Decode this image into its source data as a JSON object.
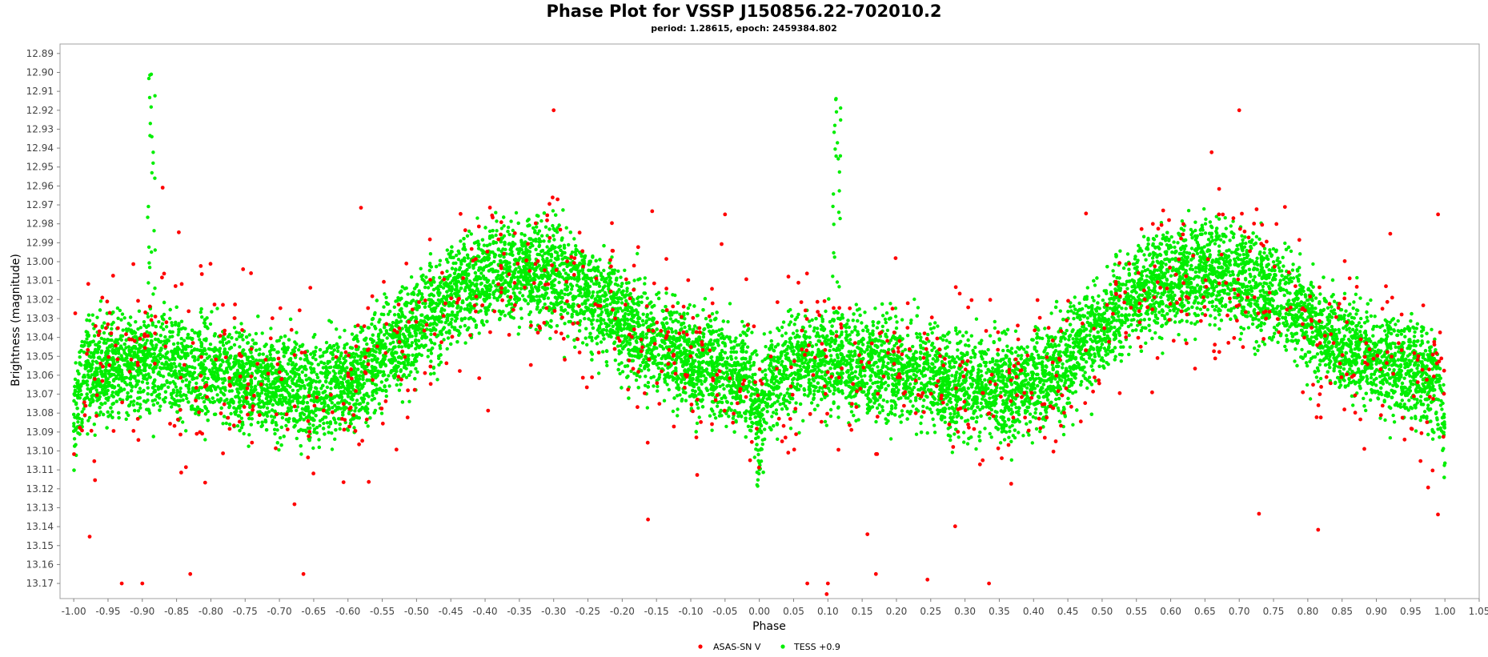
{
  "chart_data": {
    "type": "scatter",
    "title": "Phase Plot for VSSP J150856.22-702010.2",
    "subtitle": "period: 1.28615, epoch: 2459384.802",
    "xlabel": "Phase",
    "ylabel": "Brightness (magnitude)",
    "xlim": [
      -1.02,
      1.05
    ],
    "ylim": [
      12.885,
      13.178
    ],
    "y_inverted": true,
    "grid": false,
    "legend_position": "bottom-center",
    "x_ticks": [
      "-1.00",
      "-0.95",
      "-0.90",
      "-0.85",
      "-0.80",
      "-0.75",
      "-0.70",
      "-0.65",
      "-0.60",
      "-0.55",
      "-0.50",
      "-0.45",
      "-0.40",
      "-0.35",
      "-0.30",
      "-0.25",
      "-0.20",
      "-0.15",
      "-0.10",
      "-0.05",
      "0.00",
      "0.05",
      "0.10",
      "0.15",
      "0.20",
      "0.25",
      "0.30",
      "0.35",
      "0.40",
      "0.45",
      "0.50",
      "0.55",
      "0.60",
      "0.65",
      "0.70",
      "0.75",
      "0.80",
      "0.85",
      "0.90",
      "0.95",
      "1.00",
      "1.05"
    ],
    "y_ticks": [
      "12.89",
      "12.90",
      "12.91",
      "12.92",
      "12.93",
      "12.94",
      "12.95",
      "12.96",
      "12.97",
      "12.98",
      "12.99",
      "13.00",
      "13.01",
      "13.02",
      "13.03",
      "13.04",
      "13.05",
      "13.06",
      "13.07",
      "13.08",
      "13.09",
      "13.10",
      "13.11",
      "13.12",
      "13.13",
      "13.14",
      "13.15",
      "13.16",
      "13.17"
    ],
    "series": [
      {
        "name": "ASAS-SN V",
        "color": "#ff0000",
        "profile": {
          "x": [
            -1.0,
            -0.95,
            -0.9,
            -0.85,
            -0.8,
            -0.75,
            -0.7,
            -0.65,
            -0.6,
            -0.55,
            -0.5,
            -0.45,
            -0.4,
            -0.35,
            -0.3,
            -0.25,
            -0.2,
            -0.15,
            -0.1,
            -0.05,
            0.0,
            0.05,
            0.1,
            0.15,
            0.2,
            0.25,
            0.3,
            0.35,
            0.4,
            0.45,
            0.5,
            0.55,
            0.6,
            0.65,
            0.7,
            0.75,
            0.8,
            0.85,
            0.9,
            0.95,
            1.0
          ],
          "y": [
            13.062,
            13.056,
            13.05,
            13.052,
            13.055,
            13.06,
            13.066,
            13.071,
            13.068,
            13.058,
            13.04,
            13.022,
            13.012,
            13.008,
            13.012,
            13.022,
            13.035,
            13.048,
            13.058,
            13.064,
            13.066,
            13.058,
            13.05,
            13.052,
            13.055,
            13.06,
            13.066,
            13.071,
            13.068,
            13.058,
            13.04,
            13.022,
            13.012,
            13.008,
            13.012,
            13.022,
            13.035,
            13.048,
            13.058,
            13.064,
            13.066
          ]
        },
        "scatter_mag": 0.05,
        "n_points": 900,
        "outliers": [
          {
            "x": -0.3,
            "y": 12.92
          },
          {
            "x": 0.7,
            "y": 12.92
          },
          {
            "x": -0.93,
            "y": 13.17
          },
          {
            "x": -0.9,
            "y": 13.17
          },
          {
            "x": -0.83,
            "y": 13.165
          },
          {
            "x": -0.665,
            "y": 13.165
          },
          {
            "x": 0.07,
            "y": 13.17
          },
          {
            "x": 0.1,
            "y": 13.17
          },
          {
            "x": 0.335,
            "y": 13.17
          },
          {
            "x": 0.17,
            "y": 13.165
          },
          {
            "x": -0.05,
            "y": 12.975
          },
          {
            "x": 0.99,
            "y": 12.975
          }
        ]
      },
      {
        "name": "TESS +0.9",
        "color": "#00ee00",
        "profile": {
          "x": [
            -1.0,
            -0.995,
            -0.98,
            -0.95,
            -0.9,
            -0.85,
            -0.8,
            -0.75,
            -0.7,
            -0.65,
            -0.6,
            -0.55,
            -0.5,
            -0.45,
            -0.4,
            -0.35,
            -0.3,
            -0.25,
            -0.2,
            -0.15,
            -0.1,
            -0.05,
            -0.02,
            -0.01,
            -0.005,
            0.0,
            0.005,
            0.01,
            0.02,
            0.05,
            0.1,
            0.15,
            0.2,
            0.25,
            0.3,
            0.35,
            0.4,
            0.45,
            0.5,
            0.55,
            0.6,
            0.65,
            0.7,
            0.75,
            0.8,
            0.85,
            0.9,
            0.95,
            0.98,
            0.99,
            0.995,
            1.0
          ],
          "y": [
            13.088,
            13.075,
            13.06,
            13.055,
            13.053,
            13.055,
            13.058,
            13.062,
            13.066,
            13.069,
            13.064,
            13.052,
            13.035,
            13.018,
            13.008,
            13.004,
            13.008,
            13.018,
            13.032,
            13.045,
            13.053,
            13.058,
            13.062,
            13.068,
            13.077,
            13.088,
            13.077,
            13.068,
            13.06,
            13.055,
            13.053,
            13.055,
            13.058,
            13.062,
            13.066,
            13.069,
            13.064,
            13.052,
            13.035,
            13.018,
            13.008,
            13.004,
            13.008,
            13.018,
            13.032,
            13.045,
            13.053,
            13.058,
            13.062,
            13.068,
            13.077,
            13.088
          ]
        },
        "scatter_mag": 0.024,
        "n_points": 14000,
        "flares": [
          {
            "x": -0.887,
            "peak": 12.9
          },
          {
            "x": 0.113,
            "peak": 12.9
          }
        ]
      }
    ]
  }
}
